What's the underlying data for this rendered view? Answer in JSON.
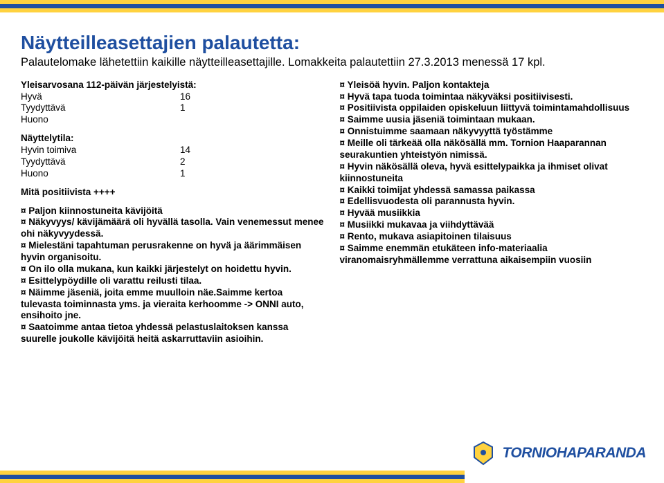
{
  "stripe_colors": [
    "#ffd23f",
    "#1f4fa0",
    "#ffd23f"
  ],
  "title": "Näytteilleasettajien palautetta:",
  "subtitle": "Palautelomake lähetettiin kaikille näytteilleasettajille. Lomakkeita palautettiin 27.3.2013 menessä 17 kpl.",
  "left": {
    "section1": {
      "head": "Yleisarvosana 112-päivän järjestelyistä:",
      "rows": [
        {
          "label": "Hyvä",
          "value": "16"
        },
        {
          "label": "Tyydyttävä",
          "value": "1"
        },
        {
          "label": "Huono",
          "value": ""
        }
      ]
    },
    "section2": {
      "head": "Näyttelytila:",
      "rows": [
        {
          "label": "Hyvin toimiva",
          "value": "14"
        },
        {
          "label": "Tyydyttävä",
          "value": "2"
        },
        {
          "label": "Huono",
          "value": "1"
        }
      ]
    },
    "positive_head": "Mitä positiivista ++++",
    "positive_items": [
      "¤ Paljon kiinnostuneita kävijöitä",
      "¤ Näkyvyys/ kävijämäärä oli hyvällä tasolla. Vain venemessut menee ohi näkyvyydessä.",
      "¤ Mielestäni tapahtuman perusrakenne on hyvä ja äärimmäisen hyvin organisoitu.",
      "¤ On ilo olla mukana, kun kaikki järjestelyt on hoidettu hyvin.",
      "¤ Esittelypöydille oli varattu reilusti tilaa.",
      "¤ Näimme jäseniä, joita emme muulloin näe.Saimme kertoa tulevasta toiminnasta yms. ja vieraita kerhoomme -> ONNI auto, ensihoito jne.",
      "¤ Saatoimme antaa tietoa yhdessä pelastuslaitoksen kanssa suurelle joukolle kävijöitä heitä askarruttaviin asioihin."
    ]
  },
  "right": {
    "items": [
      "¤ Yleisöä hyvin. Paljon kontakteja",
      "¤ Hyvä tapa tuoda toimintaa näkyväksi positiivisesti.",
      "¤ Positiivista oppilaiden opiskeluun liittyvä toimintamahdollisuus",
      "¤ Saimme uusia jäseniä toimintaan mukaan.",
      "¤ Onnistuimme saamaan näkyvyyttä työstämme",
      "¤ Meille oli tärkeää olla näkösällä mm. Tornion Haaparannan seurakuntien yhteistyön nimissä.",
      "¤ Hyvin näkösällä oleva, hyvä esittelypaikka ja ihmiset olivat kiinnostuneita",
      "¤ Kaikki toimijat yhdessä samassa paikassa",
      "¤ Edellisvuodesta oli parannusta hyvin.",
      "¤ Hyvää musiikkia",
      "¤ Musiikki mukavaa ja viihdyttävää",
      "¤ Rento, mukava asiapitoinen tilaisuus",
      "¤ Saimme enemmän etukäteen info-materiaalia viranomaisryhmällemme verrattuna aikaisempiin vuosiin"
    ]
  },
  "logo": {
    "text": "TORNIOHAPARANDA",
    "blue": "#1f4fa0",
    "yellow": "#ffd23f"
  }
}
